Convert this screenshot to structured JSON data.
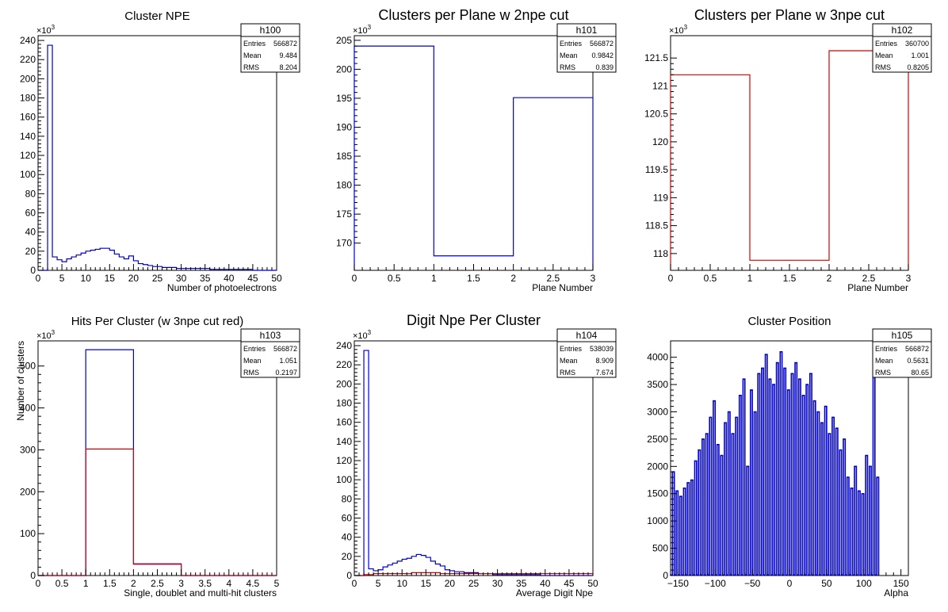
{
  "chart_data": [
    {
      "type": "bar",
      "title": "Cluster NPE",
      "xlabel": "Number of photoelectrons",
      "ylabel": "",
      "exponent": "×10",
      "exponent_power": "3",
      "xlim": [
        0,
        50
      ],
      "ylim": [
        0,
        245
      ],
      "xticks": [
        0,
        5,
        10,
        15,
        20,
        25,
        30,
        35,
        40,
        45,
        50
      ],
      "yticks": [
        0,
        20,
        40,
        60,
        80,
        100,
        120,
        140,
        160,
        180,
        200,
        220,
        240
      ],
      "xtick_labels": [
        "0",
        "5",
        "10",
        "15",
        "20",
        "25",
        "30",
        "35",
        "40",
        "45",
        "50"
      ],
      "ytick_labels": [
        "0",
        "20",
        "40",
        "60",
        "80",
        "100",
        "120",
        "140",
        "160",
        "180",
        "200",
        "220",
        "240"
      ],
      "stats": {
        "name": "h100",
        "rows": [
          [
            "Entries",
            "566872"
          ],
          [
            "Mean",
            "9.484"
          ],
          [
            "RMS",
            "8.204"
          ]
        ]
      },
      "series": [
        {
          "color": "#0000cc",
          "edges": [
            0,
            1,
            2,
            3,
            4,
            5,
            6,
            7,
            8,
            9,
            10,
            11,
            12,
            13,
            14,
            15,
            16,
            17,
            18,
            19,
            20,
            21,
            22,
            23,
            24,
            25,
            26,
            27,
            28,
            29,
            30,
            31,
            32,
            33,
            34,
            35,
            36,
            37,
            38,
            39,
            40,
            41,
            42,
            43,
            44,
            45,
            46,
            47,
            48,
            49,
            50
          ],
          "values": [
            0,
            0,
            235,
            14,
            11,
            9,
            12,
            14,
            16,
            18,
            20,
            21,
            22,
            23,
            23,
            21,
            17,
            14,
            12,
            15,
            10,
            7,
            6,
            5,
            4,
            4,
            3,
            3,
            3,
            2,
            2,
            2,
            2,
            2,
            2,
            2,
            1,
            1,
            1,
            1,
            1,
            1,
            1,
            1,
            1,
            0,
            0,
            0,
            0,
            0
          ]
        }
      ]
    },
    {
      "type": "bar",
      "title": "Clusters per Plane w 2npe cut",
      "xlabel": "Plane Number",
      "ylabel": "",
      "exponent": "×10",
      "exponent_power": "3",
      "xlim": [
        0,
        3
      ],
      "ylim": [
        165.3,
        205.8
      ],
      "xticks": [
        0,
        0.5,
        1,
        1.5,
        2,
        2.5,
        3
      ],
      "yticks": [
        170,
        175,
        180,
        185,
        190,
        195,
        200,
        205
      ],
      "xtick_labels": [
        "0",
        "0.5",
        "1",
        "1.5",
        "2",
        "2.5",
        "3"
      ],
      "ytick_labels": [
        "170",
        "175",
        "180",
        "185",
        "190",
        "195",
        "200",
        "205"
      ],
      "stats": {
        "name": "h101",
        "rows": [
          [
            "Entries",
            "566872"
          ],
          [
            "Mean",
            "0.9842"
          ],
          [
            "RMS",
            "0.839"
          ]
        ]
      },
      "series": [
        {
          "color": "#0000cc",
          "edges": [
            0,
            1,
            2,
            3
          ],
          "values": [
            204,
            167.8,
            195.1
          ]
        }
      ]
    },
    {
      "type": "bar",
      "title": "Clusters per Plane w 3npe cut",
      "xlabel": "Plane Number",
      "ylabel": "",
      "exponent": "×10",
      "exponent_power": "3",
      "xlim": [
        0,
        3
      ],
      "ylim": [
        117.7,
        121.9
      ],
      "xticks": [
        0,
        0.5,
        1,
        1.5,
        2,
        2.5,
        3
      ],
      "yticks": [
        118,
        118.5,
        119,
        119.5,
        120,
        120.5,
        121,
        121.5
      ],
      "xtick_labels": [
        "0",
        "0.5",
        "1",
        "1.5",
        "2",
        "2.5",
        "3"
      ],
      "ytick_labels": [
        "118",
        "118.5",
        "119",
        "119.5",
        "120",
        "120.5",
        "121",
        "121.5"
      ],
      "stats": {
        "name": "h102",
        "rows": [
          [
            "Entries",
            "360700"
          ],
          [
            "Mean",
            "1.001"
          ],
          [
            "RMS",
            "0.8205"
          ]
        ]
      },
      "series": [
        {
          "color": "#dd0000",
          "edges": [
            0,
            1,
            2,
            3
          ],
          "values": [
            121.2,
            117.88,
            121.63
          ]
        }
      ]
    },
    {
      "type": "bar",
      "title": "Hits Per Cluster (w 3npe cut red)",
      "xlabel": "Single, doublet and multi-hit clusters",
      "ylabel": "Number of clusters",
      "exponent": "×10",
      "exponent_power": "3",
      "xlim": [
        0,
        5
      ],
      "ylim": [
        0,
        560
      ],
      "xticks": [
        0,
        0.5,
        1,
        1.5,
        2,
        2.5,
        3,
        3.5,
        4,
        4.5,
        5
      ],
      "yticks": [
        0,
        100,
        200,
        300,
        400,
        500
      ],
      "xtick_labels": [
        "0",
        "0.5",
        "1",
        "1.5",
        "2",
        "2.5",
        "3",
        "3.5",
        "4",
        "4.5",
        "5"
      ],
      "ytick_labels": [
        "0",
        "100",
        "200",
        "300",
        "400",
        "500"
      ],
      "stats": {
        "name": "h103",
        "rows": [
          [
            "Entries",
            "566872"
          ],
          [
            "Mean",
            "1.051"
          ],
          [
            "RMS",
            "0.2197"
          ]
        ]
      },
      "series": [
        {
          "color": "#0000cc",
          "edges": [
            0,
            1,
            2,
            3,
            4,
            5
          ],
          "values": [
            0,
            539,
            28,
            0,
            0
          ]
        },
        {
          "color": "#dd0000",
          "edges": [
            0,
            1,
            2,
            3,
            4,
            5
          ],
          "values": [
            0,
            302,
            27,
            0,
            0
          ]
        }
      ]
    },
    {
      "type": "bar",
      "title": "Digit Npe Per Cluster",
      "xlabel": "Average Digit Npe",
      "ylabel": "",
      "exponent": "×10",
      "exponent_power": "3",
      "xlim": [
        0,
        50
      ],
      "ylim": [
        0,
        245
      ],
      "xticks": [
        0,
        5,
        10,
        15,
        20,
        25,
        30,
        35,
        40,
        45,
        50
      ],
      "yticks": [
        0,
        20,
        40,
        60,
        80,
        100,
        120,
        140,
        160,
        180,
        200,
        220,
        240
      ],
      "xtick_labels": [
        "0",
        "5",
        "10",
        "15",
        "20",
        "25",
        "30",
        "35",
        "40",
        "45",
        "50"
      ],
      "ytick_labels": [
        "0",
        "20",
        "40",
        "60",
        "80",
        "100",
        "120",
        "140",
        "160",
        "180",
        "200",
        "220",
        "240"
      ],
      "stats": {
        "name": "h104",
        "rows": [
          [
            "Entries",
            "538039"
          ],
          [
            "Mean",
            "8.909"
          ],
          [
            "RMS",
            "7.674"
          ]
        ]
      },
      "series": [
        {
          "color": "#0000cc",
          "edges": [
            0,
            1,
            2,
            3,
            4,
            5,
            6,
            7,
            8,
            9,
            10,
            11,
            12,
            13,
            14,
            15,
            16,
            17,
            18,
            19,
            20,
            21,
            22,
            23,
            24,
            25,
            26,
            27,
            28,
            29,
            30,
            31,
            32,
            33,
            34,
            35,
            36,
            37,
            38,
            39,
            40,
            41,
            42,
            43,
            44,
            45,
            46,
            47,
            48,
            49,
            50
          ],
          "values": [
            0,
            0,
            235,
            7,
            5,
            6,
            9,
            11,
            13,
            15,
            17,
            18,
            20,
            22,
            21,
            19,
            15,
            12,
            10,
            6,
            5,
            4,
            4,
            3,
            3,
            3,
            2,
            2,
            2,
            1,
            1,
            1,
            1,
            1,
            1,
            1,
            1,
            1,
            1,
            0,
            0,
            0,
            0,
            0,
            0,
            0,
            0,
            0,
            0,
            0
          ]
        },
        {
          "color": "#dd0000",
          "edges": [
            0,
            2,
            4,
            6,
            8,
            10,
            12,
            14,
            16,
            18,
            20,
            22,
            24,
            26,
            28,
            30,
            32,
            34,
            36,
            38,
            40,
            42,
            44,
            46,
            48,
            50
          ],
          "values": [
            0,
            1,
            2,
            2,
            2,
            2,
            3,
            3,
            3,
            2,
            2,
            2,
            2,
            2,
            2,
            2,
            2,
            2,
            2,
            2,
            2,
            2,
            2,
            2,
            2
          ]
        }
      ]
    },
    {
      "type": "bar",
      "title": "Cluster Position",
      "xlabel": "Alpha",
      "ylabel": "",
      "exponent": "",
      "exponent_power": "",
      "xlim": [
        -160,
        160
      ],
      "ylim": [
        0,
        4300
      ],
      "xticks": [
        -150,
        -100,
        -50,
        0,
        50,
        100,
        150
      ],
      "yticks": [
        0,
        500,
        1000,
        1500,
        2000,
        2500,
        3000,
        3500,
        4000
      ],
      "xtick_labels": [
        "−150",
        "−100",
        "−50",
        "0",
        "50",
        "100",
        "150"
      ],
      "ytick_labels": [
        "0",
        "500",
        "1000",
        "1500",
        "2000",
        "2500",
        "3000",
        "3500",
        "4000"
      ],
      "stats": {
        "name": "h105",
        "rows": [
          [
            "Entries",
            "566872"
          ],
          [
            "Mean",
            "0.5631"
          ],
          [
            "RMS",
            "80.65"
          ]
        ]
      },
      "series": [
        {
          "color": "#0000cc",
          "comb": true,
          "edges_start": -160,
          "edges_step": 2.5,
          "values": [
            10,
            1900,
            10,
            1550,
            10,
            1450,
            10,
            1600,
            10,
            1700,
            10,
            1750,
            10,
            2100,
            10,
            2300,
            10,
            2500,
            10,
            2600,
            10,
            2900,
            10,
            3200,
            10,
            2400,
            10,
            2200,
            10,
            2800,
            10,
            3000,
            10,
            2600,
            10,
            2900,
            10,
            3300,
            10,
            3600,
            10,
            2000,
            10,
            3400,
            10,
            3000,
            10,
            3700,
            10,
            3800,
            10,
            4050,
            10,
            3600,
            10,
            3500,
            10,
            3900,
            10,
            4100,
            10,
            3800,
            10,
            3400,
            10,
            3700,
            10,
            3900,
            10,
            3600,
            10,
            3300,
            10,
            3500,
            10,
            3700,
            10,
            3200,
            10,
            3000,
            10,
            2800,
            10,
            3100,
            10,
            2600,
            10,
            2900,
            10,
            2700,
            10,
            2300,
            10,
            2500,
            10,
            1800,
            10,
            1600,
            10,
            2000,
            10,
            1550,
            10,
            1500,
            10,
            2200,
            10,
            2000,
            10,
            3700,
            10,
            1800
          ]
        }
      ]
    }
  ]
}
